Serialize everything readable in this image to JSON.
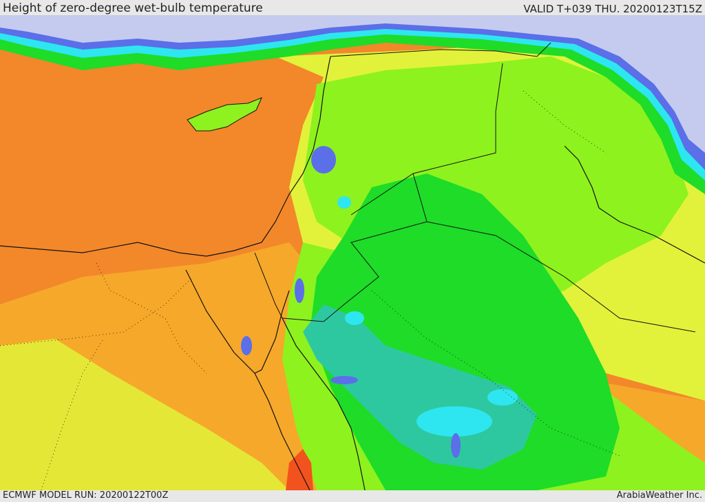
{
  "header": {
    "title": "Height of zero-degree wet-bulb temperature",
    "valid": "VALID T+039 THU. 20200123T15Z"
  },
  "footer": {
    "model_run": "ECMWF MODEL RUN: 20200122T00Z",
    "credit": "ArabiaWeather Inc."
  },
  "colors": {
    "very_low": "#c5cbef",
    "low_blue": "#5a6fe8",
    "cyan": "#2ee6f0",
    "teal": "#2ec8a0",
    "green": "#1edc28",
    "lime": "#8ef21e",
    "yellow": "#e2f23a",
    "orange": "#f6a82a",
    "dark_orange": "#f2882a",
    "red_orange": "#f2521e"
  }
}
